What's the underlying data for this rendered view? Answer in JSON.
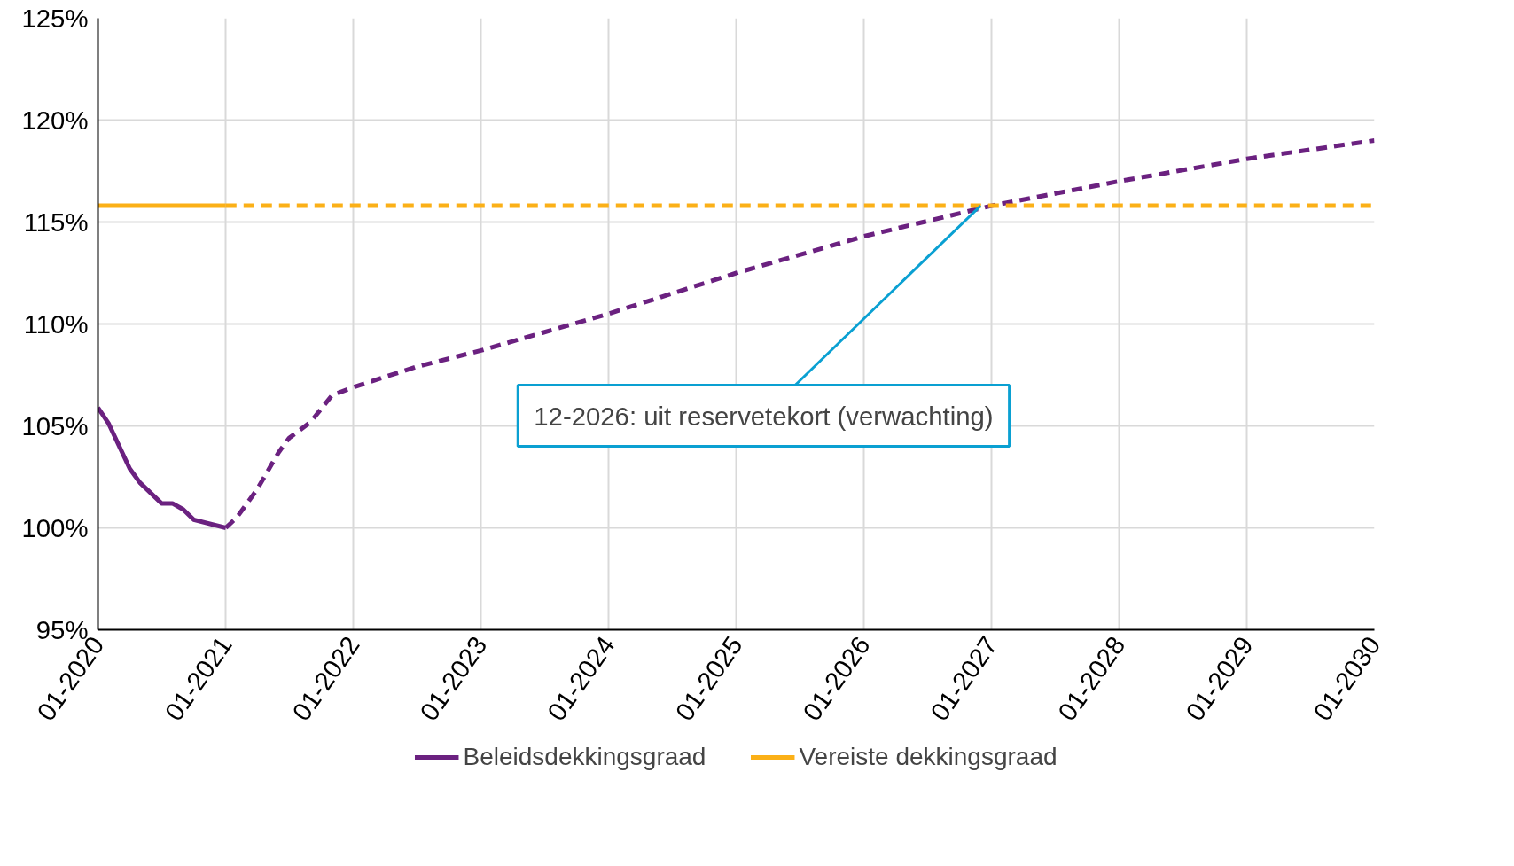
{
  "chart_data": {
    "type": "line",
    "series": [
      {
        "name": "Beleidsdekkingsgraad",
        "color": "#6b2180",
        "line_style": "solid",
        "x": [
          "2020-01",
          "2020-02",
          "2020-04",
          "2020-05",
          "2020-07",
          "2020-08",
          "2020-09",
          "2020-10",
          "2021-01"
        ],
        "values": [
          105.9,
          105.1,
          102.9,
          102.2,
          101.2,
          101.2,
          100.9,
          100.4,
          100.0
        ]
      },
      {
        "color": "#6b2180",
        "line_style": "dashed",
        "x": [
          "2021-01",
          "2021-02",
          "2021-04",
          "2021-06",
          "2021-07",
          "2021-09",
          "2021-11",
          "2022-01",
          "2022-07",
          "2023-01",
          "2024-01",
          "2025-01",
          "2026-01",
          "2027-01",
          "2028-01",
          "2029-01",
          "2030-01"
        ],
        "values": [
          100.0,
          100.5,
          101.9,
          103.7,
          104.4,
          105.2,
          106.5,
          106.9,
          107.9,
          108.7,
          110.5,
          112.5,
          114.3,
          115.8,
          117.0,
          118.1,
          119.0
        ]
      },
      {
        "name": "Vereiste dekkingsgraad",
        "color": "#fbb017",
        "line_style": "solid",
        "x": [
          "2020-01",
          "2021-01"
        ],
        "values": [
          115.8,
          115.8
        ]
      },
      {
        "color": "#fbb017",
        "line_style": "dashed",
        "x": [
          "2021-01",
          "2030-01"
        ],
        "values": [
          115.8,
          115.8
        ]
      }
    ],
    "xlim": [
      "2020-01",
      "2030-01"
    ],
    "xticks": [
      {
        "value": "2020-01",
        "label": "01-2020"
      },
      {
        "value": "2021-01",
        "label": "01-2021"
      },
      {
        "value": "2022-01",
        "label": "01-2022"
      },
      {
        "value": "2023-01",
        "label": "01-2023"
      },
      {
        "value": "2024-01",
        "label": "01-2024"
      },
      {
        "value": "2025-01",
        "label": "01-2025"
      },
      {
        "value": "2026-01",
        "label": "01-2026"
      },
      {
        "value": "2027-01",
        "label": "01-2027"
      },
      {
        "value": "2028-01",
        "label": "01-2028"
      },
      {
        "value": "2029-01",
        "label": "01-2029"
      },
      {
        "value": "2030-01",
        "label": "01-2030"
      }
    ],
    "ylim": [
      95,
      125
    ],
    "yticks": [
      {
        "value": 95,
        "label": "95%"
      },
      {
        "value": 100,
        "label": "100%"
      },
      {
        "value": 105,
        "label": "105%"
      },
      {
        "value": 110,
        "label": "110%"
      },
      {
        "value": 115,
        "label": "115%"
      },
      {
        "value": 120,
        "label": "120%"
      },
      {
        "value": 125,
        "label": "125%"
      }
    ],
    "grid": true,
    "legend": "bottom",
    "marker": "none",
    "annotations": [
      {
        "text": "12-2026: uit reservetekort (verwachting)",
        "x": "2026-12",
        "y": 115.8
      }
    ]
  }
}
